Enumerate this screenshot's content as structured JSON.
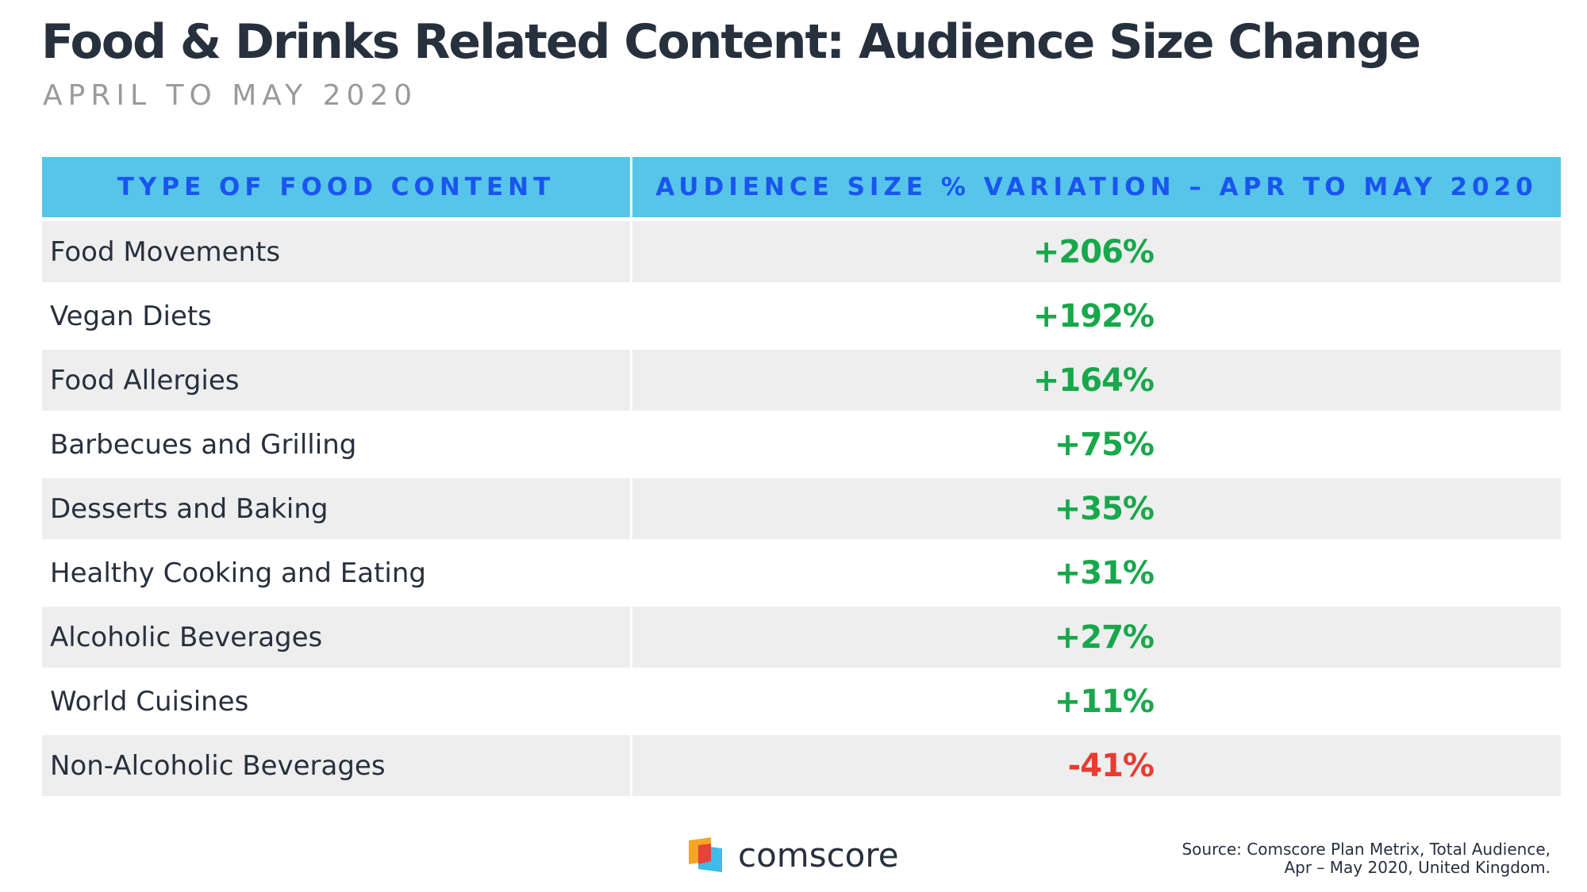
{
  "title": "Food & Drinks Related Content: Audience Size Change",
  "subtitle": "APRIL TO MAY 2020",
  "colors": {
    "header_bg": "#57c5e9",
    "header_text": "#1a55ef",
    "positive": "#17a84b",
    "negative": "#e83c2f",
    "row_shade": "#eeeeef"
  },
  "chart_data": {
    "type": "table",
    "columns": [
      "TYPE OF FOOD CONTENT",
      "AUDIENCE SIZE % VARIATION – APR TO MAY 2020"
    ],
    "rows": [
      {
        "category": "Food Movements",
        "value": 206,
        "label": "+206%"
      },
      {
        "category": "Vegan Diets",
        "value": 192,
        "label": "+192%"
      },
      {
        "category": "Food Allergies",
        "value": 164,
        "label": "+164%"
      },
      {
        "category": "Barbecues and Grilling",
        "value": 75,
        "label": "+75%"
      },
      {
        "category": "Desserts and Baking",
        "value": 35,
        "label": "+35%"
      },
      {
        "category": "Healthy Cooking and Eating",
        "value": 31,
        "label": "+31%"
      },
      {
        "category": "Alcoholic Beverages",
        "value": 27,
        "label": "+27%"
      },
      {
        "category": "World Cuisines",
        "value": 11,
        "label": "+11%"
      },
      {
        "category": "Non-Alcoholic Beverages",
        "value": -41,
        "label": "-41%"
      }
    ]
  },
  "logo": {
    "text": "comscore"
  },
  "source": {
    "line1": "Source: Comscore Plan Metrix, Total Audience,",
    "line2": "Apr – May 2020, United Kingdom."
  }
}
